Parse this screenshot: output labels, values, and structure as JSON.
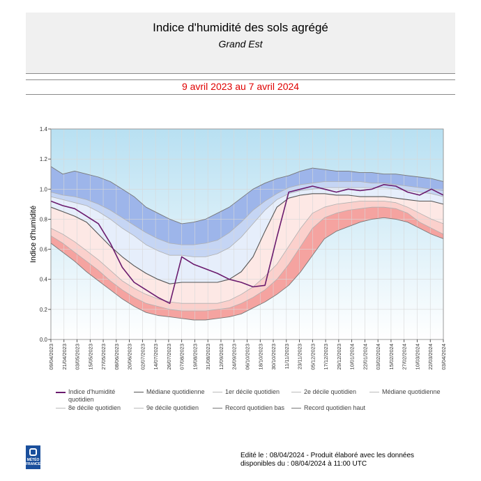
{
  "header": {
    "title": "Indice d'humidité des sols agrégé",
    "subtitle": "Grand Est",
    "period": "9 avril 2023 au 7 avril 2024"
  },
  "chart_data": {
    "type": "area",
    "ylabel": "Indice d'humidité",
    "xlabel": "",
    "ylim": [
      0.0,
      1.4
    ],
    "yticks": [
      "0.0",
      "0.2",
      "0.4",
      "0.6",
      "0.8",
      "1.0",
      "1.2",
      "1.4"
    ],
    "xtick_labels": [
      "09/04/2023",
      "21/04/2023",
      "03/05/2023",
      "15/05/2023",
      "27/05/2023",
      "08/06/2023",
      "20/06/2023",
      "02/07/2023",
      "14/07/2023",
      "26/07/2023",
      "07/08/2023",
      "19/08/2023",
      "31/08/2023",
      "12/09/2023",
      "24/09/2023",
      "06/10/2023",
      "18/10/2023",
      "30/10/2023",
      "11/11/2023",
      "23/11/2023",
      "05/12/2023",
      "17/12/2023",
      "29/12/2023",
      "10/01/2024",
      "22/01/2024",
      "03/02/2024",
      "15/02/2024",
      "27/02/2024",
      "10/03/2024",
      "22/03/2024",
      "03/04/2024"
    ],
    "x": [
      "09/04",
      "20/04",
      "01/05",
      "12/05",
      "23/05",
      "03/06",
      "14/06",
      "25/06",
      "06/07",
      "17/07",
      "28/07",
      "08/08",
      "19/08",
      "30/08",
      "10/09",
      "21/09",
      "02/10",
      "13/10",
      "24/10",
      "04/11",
      "15/11",
      "26/11",
      "07/12",
      "18/12",
      "29/12",
      "09/01",
      "20/01",
      "31/01",
      "11/02",
      "22/02",
      "04/03",
      "15/03",
      "26/03",
      "07/04"
    ],
    "series": [
      {
        "name": "Indice d'humidité quotidien",
        "color": "#6a1b6e",
        "values": [
          0.92,
          0.89,
          0.87,
          0.82,
          0.77,
          0.64,
          0.48,
          0.38,
          0.33,
          0.28,
          0.24,
          0.55,
          0.5,
          0.47,
          0.44,
          0.4,
          0.38,
          0.35,
          0.36,
          0.68,
          0.98,
          1.0,
          1.02,
          1.0,
          0.98,
          1.0,
          0.99,
          1.0,
          1.03,
          1.02,
          0.98,
          0.96,
          1.0,
          0.96
        ]
      },
      {
        "name": "Médiane quotidienne",
        "color": "#666666",
        "values": [
          0.88,
          0.85,
          0.82,
          0.78,
          0.7,
          0.62,
          0.55,
          0.49,
          0.44,
          0.4,
          0.37,
          0.38,
          0.38,
          0.38,
          0.38,
          0.4,
          0.45,
          0.55,
          0.72,
          0.88,
          0.94,
          0.96,
          0.97,
          0.97,
          0.96,
          0.96,
          0.95,
          0.95,
          0.95,
          0.94,
          0.93,
          0.92,
          0.92,
          0.9
        ]
      },
      {
        "name": "1er décile quotidien",
        "color": "#b0b0b0",
        "values": [
          0.69,
          0.64,
          0.58,
          0.52,
          0.46,
          0.39,
          0.33,
          0.28,
          0.24,
          0.22,
          0.2,
          0.19,
          0.19,
          0.19,
          0.2,
          0.21,
          0.24,
          0.28,
          0.33,
          0.4,
          0.5,
          0.62,
          0.74,
          0.81,
          0.84,
          0.86,
          0.87,
          0.88,
          0.88,
          0.87,
          0.84,
          0.78,
          0.74,
          0.7
        ]
      },
      {
        "name": "2e décile quotidien",
        "color": "#b0b0b0",
        "values": [
          0.74,
          0.7,
          0.65,
          0.59,
          0.53,
          0.46,
          0.39,
          0.34,
          0.3,
          0.27,
          0.25,
          0.24,
          0.24,
          0.24,
          0.24,
          0.26,
          0.3,
          0.35,
          0.42,
          0.5,
          0.62,
          0.74,
          0.84,
          0.88,
          0.9,
          0.91,
          0.92,
          0.92,
          0.92,
          0.91,
          0.88,
          0.84,
          0.8,
          0.77
        ]
      },
      {
        "name": "8e décile quotidien",
        "color": "#b0b0b0",
        "values": [
          0.95,
          0.93,
          0.91,
          0.89,
          0.85,
          0.8,
          0.74,
          0.69,
          0.63,
          0.59,
          0.56,
          0.56,
          0.55,
          0.55,
          0.57,
          0.61,
          0.68,
          0.77,
          0.86,
          0.93,
          0.97,
          0.99,
          1.0,
          1.01,
          1.01,
          1.01,
          1.01,
          1.01,
          1.01,
          1.0,
          0.99,
          0.98,
          0.97,
          0.95
        ]
      },
      {
        "name": "9e décile quotidien",
        "color": "#b0b0b0",
        "values": [
          0.98,
          0.96,
          0.95,
          0.93,
          0.9,
          0.86,
          0.81,
          0.76,
          0.71,
          0.67,
          0.64,
          0.63,
          0.63,
          0.64,
          0.66,
          0.71,
          0.78,
          0.86,
          0.92,
          0.97,
          1.01,
          1.03,
          1.04,
          1.05,
          1.05,
          1.05,
          1.05,
          1.04,
          1.04,
          1.03,
          1.02,
          1.01,
          1.0,
          0.99
        ]
      },
      {
        "name": "Record quotidien bas",
        "color": "#777777",
        "values": [
          0.64,
          0.58,
          0.52,
          0.45,
          0.39,
          0.33,
          0.27,
          0.22,
          0.18,
          0.16,
          0.15,
          0.14,
          0.13,
          0.13,
          0.14,
          0.15,
          0.17,
          0.21,
          0.25,
          0.3,
          0.36,
          0.45,
          0.56,
          0.67,
          0.72,
          0.75,
          0.78,
          0.8,
          0.81,
          0.8,
          0.78,
          0.74,
          0.7,
          0.67
        ]
      },
      {
        "name": "Record quotidien haut",
        "color": "#777777",
        "values": [
          1.15,
          1.1,
          1.12,
          1.1,
          1.08,
          1.05,
          1.0,
          0.95,
          0.88,
          0.84,
          0.8,
          0.77,
          0.78,
          0.8,
          0.84,
          0.88,
          0.94,
          1.0,
          1.04,
          1.07,
          1.09,
          1.12,
          1.14,
          1.13,
          1.12,
          1.12,
          1.11,
          1.11,
          1.1,
          1.1,
          1.09,
          1.08,
          1.07,
          1.05
        ]
      }
    ],
    "legend": [
      {
        "label": "Indice d'humidité quotidien",
        "color": "#6a1b6e"
      },
      {
        "label": "Médiane quotidienne",
        "color": "#555555"
      },
      {
        "label": "1er décile quotidien",
        "color": "#bbbbbb"
      },
      {
        "label": "2e décile quotidien",
        "color": "#bbbbbb"
      },
      {
        "label": "Médiane quotidienne",
        "color": "#bbbbbb"
      },
      {
        "label": "8e décile quotidien",
        "color": "#bbbbbb"
      },
      {
        "label": "9e décile quotidien",
        "color": "#bbbbbb"
      },
      {
        "label": "Record quotidien bas",
        "color": "#777777"
      },
      {
        "label": "Record quotidien haut",
        "color": "#777777"
      }
    ],
    "grid": true,
    "legend_position": "bottom"
  },
  "logo": {
    "text": "MÉTÉO FRANCE"
  },
  "footer": {
    "line1": "Edité le : 08/04/2024 - Produit élaboré avec les données",
    "line2": "disponibles du : 08/04/2024 à 11:00 UTC"
  },
  "colors": {
    "sky_top": "#b8e0f2",
    "sky_bottom": "#ffffff",
    "dry_band_dark": "#f5a3a0",
    "dry_band_mid": "#fbd0cc",
    "dry_band_light": "#fde8e5",
    "wet_band_dark": "#9db5ea",
    "wet_band_mid": "#c5d5f4",
    "wet_band_light": "#e6eefb",
    "title_red": "#e00000"
  }
}
